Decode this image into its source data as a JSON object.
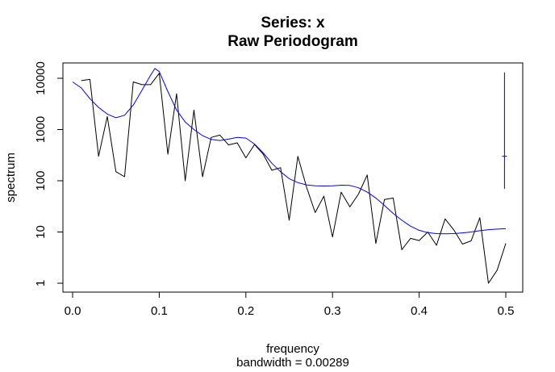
{
  "chart_data": {
    "type": "line",
    "title": "Series: x",
    "subtitle": "Raw Periodogram",
    "xlabel": "frequency",
    "xlabel_sub": "bandwidth = 0.00289",
    "ylabel": "spectrum",
    "y_scale": "log",
    "xlim": [
      0,
      0.5
    ],
    "ylim": [
      1,
      10000
    ],
    "x_ticks": [
      0.0,
      0.1,
      0.2,
      0.3,
      0.4,
      0.5
    ],
    "x_tick_labels": [
      "0.0",
      "0.1",
      "0.2",
      "0.3",
      "0.4",
      "0.5"
    ],
    "y_ticks": [
      1,
      10,
      100,
      1000,
      10000
    ],
    "y_tick_labels": [
      "1",
      "10",
      "100",
      "1000",
      "10000"
    ],
    "grid": false,
    "series": [
      {
        "color": "#000000",
        "x": [
          0.01,
          0.02,
          0.03,
          0.04,
          0.05,
          0.06,
          0.07,
          0.08,
          0.09,
          0.1,
          0.11,
          0.12,
          0.13,
          0.14,
          0.15,
          0.16,
          0.17,
          0.18,
          0.19,
          0.2,
          0.21,
          0.22,
          0.23,
          0.24,
          0.25,
          0.26,
          0.27,
          0.28,
          0.29,
          0.3,
          0.31,
          0.32,
          0.33,
          0.34,
          0.35,
          0.36,
          0.37,
          0.38,
          0.39,
          0.4,
          0.41,
          0.42,
          0.43,
          0.44,
          0.45,
          0.46,
          0.47,
          0.48,
          0.49,
          0.5
        ],
        "values": [
          9000,
          9500,
          300,
          1800,
          150,
          120,
          8500,
          7500,
          7500,
          12500,
          330,
          5000,
          100,
          2400,
          120,
          700,
          780,
          500,
          550,
          280,
          510,
          330,
          160,
          180,
          17,
          300,
          75,
          24,
          50,
          8,
          60,
          31,
          55,
          130,
          6,
          43,
          46,
          4.5,
          7.5,
          6.8,
          10,
          5.5,
          18,
          11,
          5.8,
          6.7,
          19,
          1,
          1.8,
          6
        ]
      },
      {
        "color": "#0000ff",
        "x": [
          0.0,
          0.01,
          0.02,
          0.03,
          0.04,
          0.05,
          0.06,
          0.07,
          0.08,
          0.09,
          0.095,
          0.1,
          0.11,
          0.12,
          0.13,
          0.14,
          0.15,
          0.16,
          0.17,
          0.18,
          0.19,
          0.2,
          0.21,
          0.22,
          0.23,
          0.24,
          0.25,
          0.26,
          0.27,
          0.28,
          0.29,
          0.3,
          0.31,
          0.32,
          0.33,
          0.34,
          0.35,
          0.36,
          0.37,
          0.38,
          0.39,
          0.4,
          0.41,
          0.42,
          0.43,
          0.44,
          0.45,
          0.46,
          0.47,
          0.48,
          0.49,
          0.5
        ],
        "values": [
          8500,
          6500,
          4000,
          2700,
          2000,
          1700,
          1900,
          3000,
          5800,
          11500,
          15500,
          13500,
          5500,
          2400,
          1400,
          1000,
          760,
          640,
          610,
          650,
          700,
          680,
          520,
          350,
          220,
          150,
          110,
          92,
          83,
          80,
          79,
          80,
          82,
          81,
          73,
          60,
          46,
          33,
          23,
          17,
          13,
          10.8,
          9.7,
          9.3,
          9.2,
          9.3,
          9.6,
          10,
          10.6,
          11.1,
          11.4,
          11.6
        ]
      }
    ],
    "error_bar": {
      "x": 0.4985,
      "center": 300,
      "lower": 70,
      "upper": 13000,
      "color": "#0000cc"
    }
  }
}
